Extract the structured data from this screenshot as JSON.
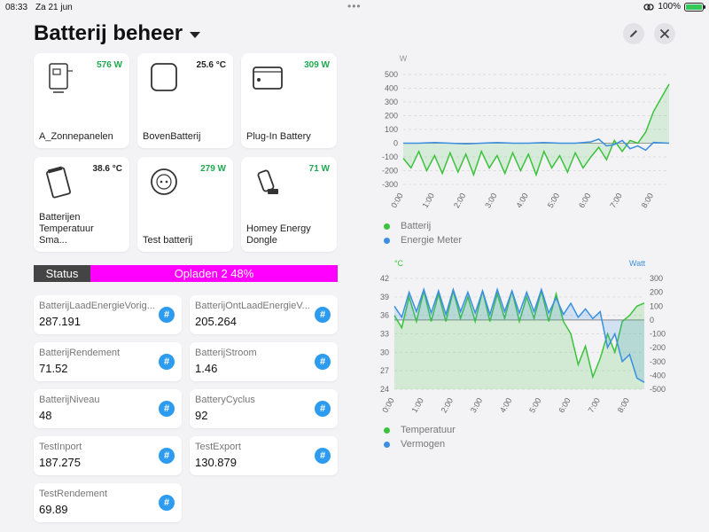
{
  "status_bar": {
    "time": "08:33",
    "date": "Za 21 jun",
    "battery": "100%"
  },
  "header": {
    "title": "Batterij beheer",
    "edit_icon": "pencil-icon",
    "close_icon": "close-icon"
  },
  "devices": [
    {
      "name": "A_Zonnepanelen",
      "value": "576 W",
      "color": "#1fa84f",
      "icon": "inverter-icon"
    },
    {
      "name": "BovenBatterij",
      "value": "25.6 °C",
      "color": "#222222",
      "icon": "battery-box-icon"
    },
    {
      "name": "Plug-In Battery",
      "value": "309 W",
      "color": "#1fa84f",
      "icon": "plugin-battery-icon"
    },
    {
      "name": "Batterijen Temperatuur Sma...",
      "value": "38.6 °C",
      "color": "#222222",
      "icon": "temperature-sensor-icon"
    },
    {
      "name": "Test batterij",
      "value": "279 W",
      "color": "#1fa84f",
      "icon": "smart-plug-icon"
    },
    {
      "name": "Homey Energy Dongle",
      "value": "71 W",
      "color": "#1fa84f",
      "icon": "energy-dongle-icon"
    }
  ],
  "status": {
    "label": "Status",
    "value": "Opladen 2 48%"
  },
  "variables": [
    {
      "label": "BatterijLaadEnergieVorig...",
      "value": "287.191"
    },
    {
      "label": "BatterijOntLaadEnergieV...",
      "value": "205.264"
    },
    {
      "label": "BatterijRendement",
      "value": "71.52"
    },
    {
      "label": "BatterijStroom",
      "value": "1.46"
    },
    {
      "label": "BatterijNiveau",
      "value": "48"
    },
    {
      "label": "BatteryCyclus",
      "value": "92"
    },
    {
      "label": "TestInport",
      "value": "187.275"
    },
    {
      "label": "TestExport",
      "value": "130.879"
    },
    {
      "label": "TestRendement",
      "value": "69.89"
    }
  ],
  "hash_symbol": "#",
  "chart_data": [
    {
      "type": "line",
      "y_unit": "W",
      "ylim": [
        -300,
        500
      ],
      "yticks": [
        500,
        400,
        300,
        200,
        100,
        0,
        -100,
        -200,
        -300
      ],
      "xticks": [
        "0:00",
        "1:00",
        "2:00",
        "3:00",
        "4:00",
        "5:00",
        "6:00",
        "7:00",
        "8:00"
      ],
      "grid": true,
      "legend_position": "bottom",
      "series": [
        {
          "name": "Batterij",
          "color": "#3cc23c",
          "x": [
            0,
            0.25,
            0.5,
            0.75,
            1,
            1.25,
            1.5,
            1.75,
            2,
            2.25,
            2.5,
            2.75,
            3,
            3.25,
            3.5,
            3.75,
            4,
            4.25,
            4.5,
            4.75,
            5,
            5.25,
            5.5,
            5.75,
            6,
            6.25,
            6.5,
            6.75,
            7,
            7.25,
            7.5,
            7.75,
            8,
            8.25,
            8.5
          ],
          "values": [
            -110,
            -180,
            -60,
            -200,
            -90,
            -220,
            -70,
            -210,
            -80,
            -230,
            -60,
            -180,
            -90,
            -220,
            -70,
            -200,
            -80,
            -230,
            -60,
            -180,
            -90,
            -210,
            -70,
            -180,
            -100,
            -30,
            -120,
            20,
            -60,
            20,
            0,
            80,
            230,
            330,
            430
          ]
        },
        {
          "name": "Energie Meter",
          "color": "#3a8fe0",
          "x": [
            0,
            0.5,
            1,
            1.5,
            2,
            2.5,
            3,
            3.5,
            4,
            4.5,
            5,
            5.5,
            6,
            6.25,
            6.5,
            6.75,
            7,
            7.25,
            7.5,
            7.75,
            8,
            8.5
          ],
          "values": [
            0,
            0,
            5,
            0,
            -5,
            0,
            5,
            0,
            0,
            5,
            0,
            0,
            10,
            30,
            -20,
            -10,
            20,
            -40,
            -20,
            -50,
            5,
            0
          ]
        }
      ]
    },
    {
      "type": "area",
      "y_left_unit": "°C",
      "y_right_unit": "Watt",
      "y_left_lim": [
        24,
        42
      ],
      "y_right_lim": [
        -500,
        300
      ],
      "y_left_ticks": [
        42,
        39,
        36,
        33,
        30,
        27,
        24
      ],
      "y_right_ticks": [
        300,
        200,
        100,
        0,
        -100,
        -200,
        -300,
        -400,
        -500
      ],
      "xticks": [
        "0:00",
        "1:00",
        "2:00",
        "3:00",
        "4:00",
        "5:00",
        "6:00",
        "7:00",
        "8:00"
      ],
      "grid": true,
      "legend_position": "bottom",
      "series": [
        {
          "name": "Temperatuur",
          "color": "#3cc23c",
          "axis": "left",
          "x": [
            0,
            0.25,
            0.5,
            0.75,
            1,
            1.25,
            1.5,
            1.75,
            2,
            2.25,
            2.5,
            2.75,
            3,
            3.25,
            3.5,
            3.75,
            4,
            4.25,
            4.5,
            4.75,
            5,
            5.25,
            5.5,
            5.75,
            6,
            6.25,
            6.5,
            6.75,
            7,
            7.25,
            7.5,
            7.75,
            8,
            8.25,
            8.5
          ],
          "values": [
            36,
            34,
            39,
            35,
            40,
            35,
            39.5,
            35,
            40,
            35.5,
            39,
            35,
            40,
            35,
            39.5,
            35.5,
            40,
            35,
            39,
            35.5,
            40,
            35,
            39.5,
            35,
            33,
            28,
            31,
            26,
            29,
            33,
            30,
            35,
            36,
            37.5,
            38
          ]
        },
        {
          "name": "Vermogen",
          "color": "#3a8fe0",
          "axis": "right",
          "x": [
            0,
            0.25,
            0.5,
            0.75,
            1,
            1.25,
            1.5,
            1.75,
            2,
            2.25,
            2.5,
            2.75,
            3,
            3.25,
            3.5,
            3.75,
            4,
            4.25,
            4.5,
            4.75,
            5,
            5.25,
            5.5,
            5.75,
            6,
            6.25,
            6.5,
            6.75,
            7,
            7.25,
            7.5,
            7.75,
            8,
            8.25,
            8.5
          ],
          "values": [
            100,
            20,
            200,
            60,
            220,
            50,
            210,
            40,
            220,
            60,
            200,
            50,
            210,
            40,
            220,
            60,
            210,
            50,
            200,
            60,
            220,
            50,
            160,
            40,
            120,
            20,
            80,
            10,
            60,
            -200,
            -100,
            -300,
            -250,
            -420,
            -450
          ]
        }
      ]
    }
  ]
}
